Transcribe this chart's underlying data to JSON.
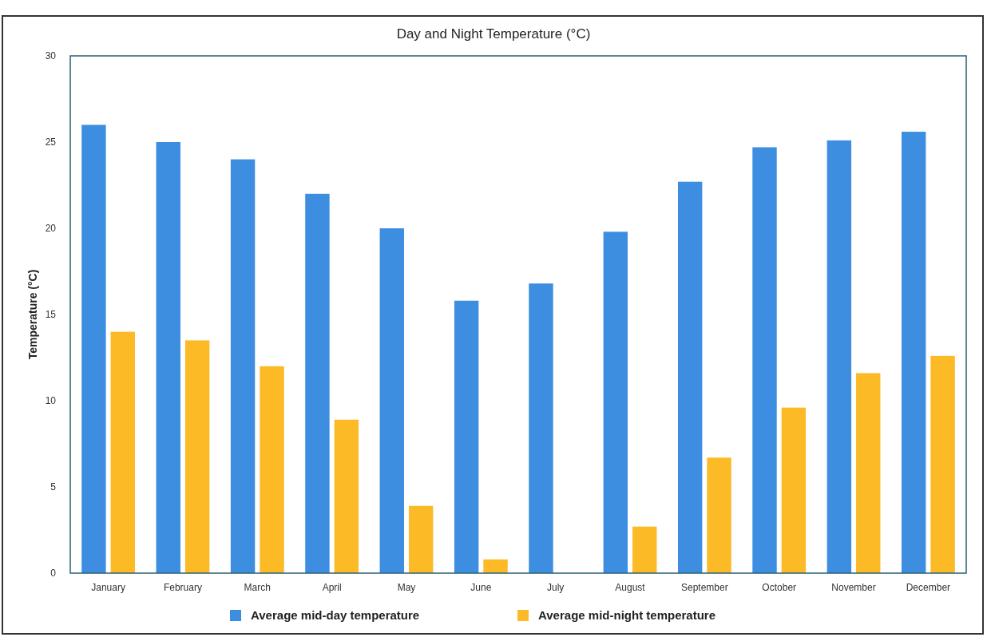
{
  "chart_data": {
    "type": "bar",
    "title": "Day and Night Temperature (°C)",
    "ylabel": "Temperature (°C)",
    "categories": [
      "January",
      "February",
      "March",
      "April",
      "May",
      "June",
      "July",
      "August",
      "September",
      "October",
      "November",
      "December"
    ],
    "series": [
      {
        "name": "Average mid-day temperature",
        "color": "#3d8ee0",
        "values": [
          26,
          25,
          24,
          22,
          20,
          15.8,
          16.8,
          19.8,
          22.7,
          24.7,
          25.1,
          25.6
        ]
      },
      {
        "name": "Average mid-night temperature",
        "color": "#fbba26",
        "values": [
          14,
          13.5,
          12,
          8.9,
          3.9,
          0.8,
          0,
          2.7,
          6.7,
          9.6,
          11.6,
          12.6
        ]
      }
    ],
    "ylim": [
      0,
      30
    ],
    "yticks": [
      0,
      5,
      10,
      15,
      20,
      25,
      30
    ],
    "grid": false,
    "legend": "bottom"
  }
}
